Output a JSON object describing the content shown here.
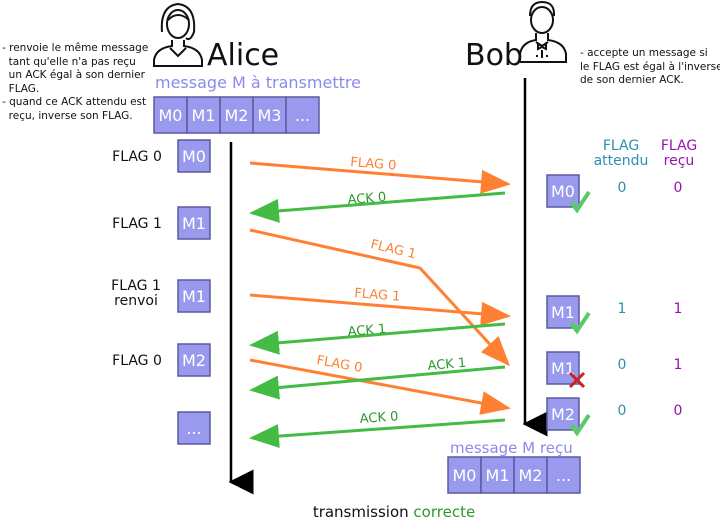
{
  "colors": {
    "box": "#9999ee",
    "box_stroke": "#5a5aa0",
    "flag_arrow": "#ff8033",
    "ack_arrow": "#44bb44",
    "expected": "#2a8fb0",
    "received": "#9a10b0",
    "title_msg": "#8a8aee",
    "correct": "#2a9a2a"
  },
  "alice": {
    "name": "Alice",
    "note": "- renvoie le même message\n  tant qu'elle n'a pas reçu\n  un ACK égal à son dernier\n  FLAG.\n- quand ce ACK attendu est\n  reçu, inverse son FLAG.",
    "queue_title": "message M à transmettre",
    "queue": [
      "M0",
      "M1",
      "M2",
      "M3",
      "..."
    ],
    "steps": [
      {
        "flag": "FLAG 0",
        "msg": "M0"
      },
      {
        "flag": "FLAG 1",
        "msg": "M1"
      },
      {
        "flag": "FLAG 1\nrenvoi",
        "msg": "M1"
      },
      {
        "flag": "FLAG 0",
        "msg": "M2"
      },
      {
        "flag": "",
        "msg": "..."
      }
    ]
  },
  "bob": {
    "name": "Bob",
    "note": "- accepte un message si\nle FLAG est égal à l'inverse\nde son dernier ACK.",
    "received_title": "message M reçu",
    "received": [
      "M0",
      "M1",
      "M2",
      "..."
    ],
    "table_headers": {
      "expected": [
        "FLAG",
        "attendu"
      ],
      "received": [
        "FLAG",
        "reçu"
      ]
    },
    "rows": [
      {
        "msg": "M0",
        "expected": "0",
        "received": "0",
        "status": "check"
      },
      {
        "msg": "M1",
        "expected": "1",
        "received": "1",
        "status": "check"
      },
      {
        "msg": "M1",
        "expected": "0",
        "received": "1",
        "status": "cross"
      },
      {
        "msg": "M2",
        "expected": "0",
        "received": "0",
        "status": "check"
      }
    ]
  },
  "arrows": {
    "flag0": "FLAG 0",
    "ack0": "ACK 0",
    "flag1": "FLAG 1",
    "flag1b": "FLAG 1",
    "ack1": "ACK 1",
    "flag0b": "FLAG 0",
    "ack1b": "ACK 1",
    "ack0b": "ACK 0"
  },
  "footer": {
    "prefix": "transmission",
    "status": "correcte"
  }
}
